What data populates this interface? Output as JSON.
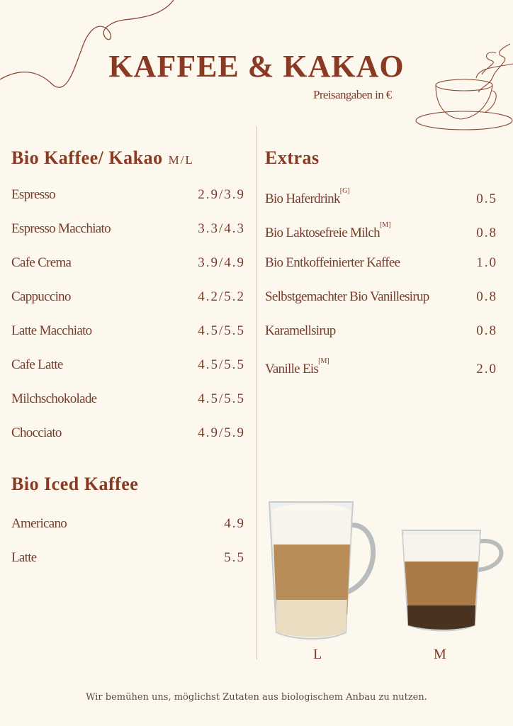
{
  "header": {
    "title": "KAFFEE & KAKAO",
    "subtitle": "Preisangaben in €"
  },
  "left": {
    "heading": "Bio Kaffee/ Kakao",
    "size_label": "M/L",
    "items": [
      {
        "name": "Espresso",
        "price": "2.9/3.9"
      },
      {
        "name": "Espresso Macchiato",
        "price": "3.3/4.3"
      },
      {
        "name": "Cafe Crema",
        "price": "3.9/4.9"
      },
      {
        "name": "Cappuccino",
        "price": "4.2/5.2"
      },
      {
        "name": "Latte Macchiato",
        "price": "4.5/5.5"
      },
      {
        "name": "Cafe Latte",
        "price": "4.5/5.5"
      },
      {
        "name": "Milchschokolade",
        "price": "4.5/5.5"
      },
      {
        "name": "Chocciato",
        "price": "4.9/5.9"
      }
    ],
    "iced_heading": "Bio Iced Kaffee",
    "iced_items": [
      {
        "name": "Americano",
        "price": "4.9"
      },
      {
        "name": "Latte",
        "price": "5.5"
      }
    ]
  },
  "right": {
    "heading": "Extras",
    "items": [
      {
        "name": "Bio Haferdrink",
        "note": "[G]",
        "price": "0.5"
      },
      {
        "name": "Bio Laktosefreie Milch",
        "note": "[M]",
        "price": "0.8"
      },
      {
        "name": "Bio Entkoffeinierter Kaffee",
        "note": "",
        "price": "1.0"
      },
      {
        "name": "Selbstgemachter Bio Vanillesirup",
        "note": "",
        "price": "0.8"
      },
      {
        "name": "Karamellsirup",
        "note": "",
        "price": "0.8"
      },
      {
        "name": "Vanille Eis",
        "note": "[M]",
        "price": "2.0"
      }
    ]
  },
  "images": {
    "large_label": "L",
    "medium_label": "M"
  },
  "footer": "Wir bemühen uns, möglichst Zutaten aus biologischem Anbau zu nutzen.",
  "colors": {
    "background": "#fdf8ee",
    "accent": "#8a3a22",
    "text": "#7a3b2b"
  }
}
